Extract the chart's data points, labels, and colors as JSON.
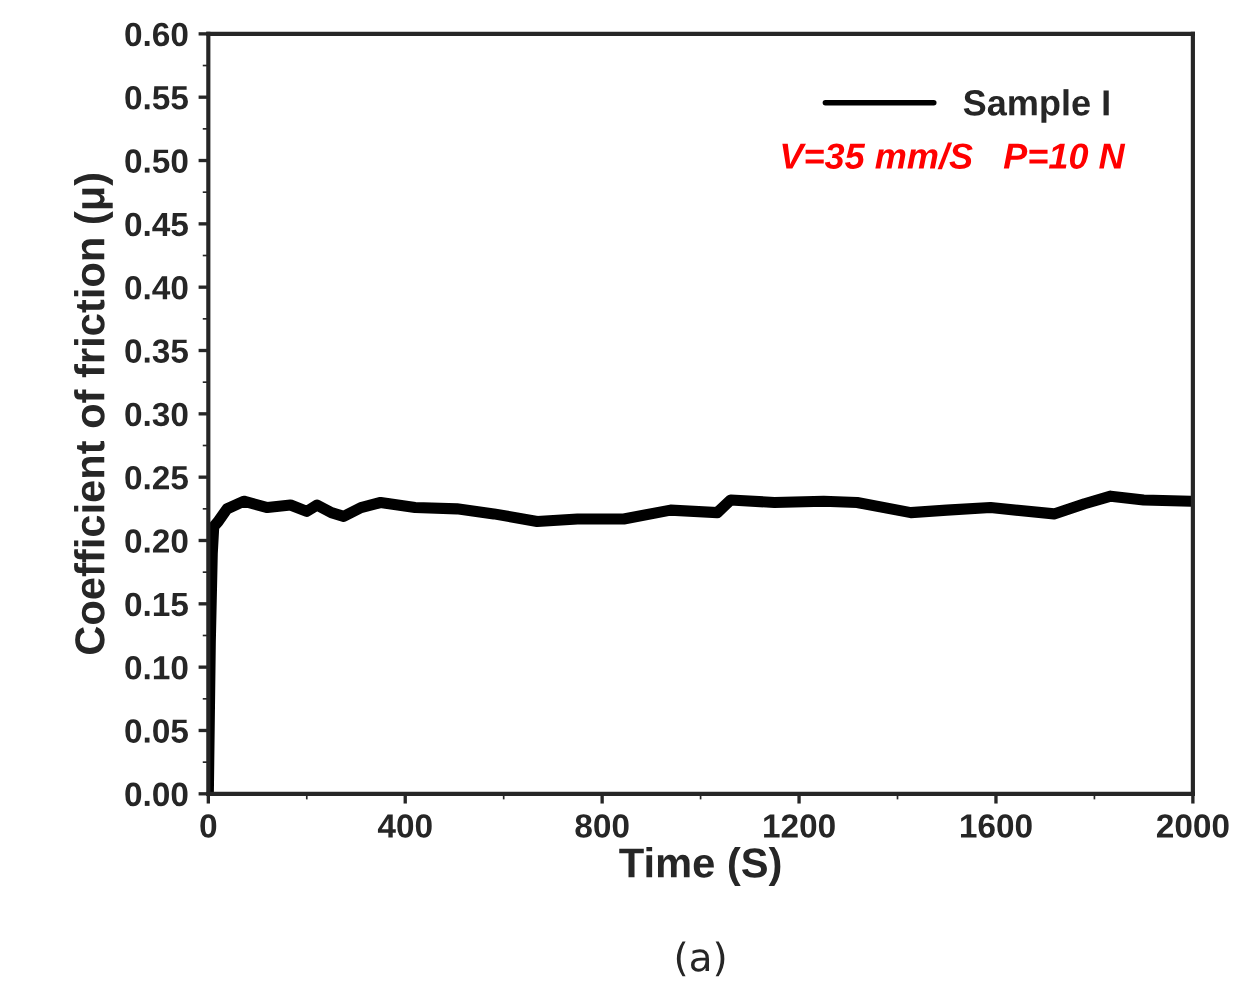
{
  "chart_data": {
    "type": "line",
    "xlabel": "Time (S)",
    "ylabel": "Coefficient of friction (μ)",
    "x": [
      0,
      4,
      8,
      11,
      20,
      38,
      72,
      120,
      167,
      200,
      221,
      250,
      275,
      310,
      350,
      420,
      505,
      580,
      668,
      750,
      844,
      939,
      1034,
      1061,
      1150,
      1250,
      1318,
      1427,
      1500,
      1589,
      1718,
      1780,
      1833,
      1900,
      1996
    ],
    "series": [
      {
        "name": "Sample I",
        "color": "#000000",
        "values": [
          0,
          0.12,
          0.19,
          0.211,
          0.215,
          0.225,
          0.231,
          0.226,
          0.228,
          0.223,
          0.228,
          0.222,
          0.219,
          0.226,
          0.23,
          0.226,
          0.225,
          0.221,
          0.215,
          0.217,
          0.217,
          0.224,
          0.222,
          0.232,
          0.23,
          0.231,
          0.23,
          0.222,
          0.224,
          0.226,
          0.221,
          0.229,
          0.235,
          0.232,
          0.231
        ]
      }
    ],
    "xlim": [
      0,
      2000
    ],
    "xticks": [
      0,
      400,
      800,
      1200,
      1600,
      2000
    ],
    "ylim": [
      0,
      0.6
    ],
    "yticks": [
      {
        "value": 0,
        "label": "0.00"
      },
      {
        "value": 0.05,
        "label": "0.05"
      },
      {
        "value": 0.1,
        "label": "0.10"
      },
      {
        "value": 0.15,
        "label": "0.15"
      },
      {
        "value": 0.2,
        "label": "0.20"
      },
      {
        "value": 0.25,
        "label": "0.25"
      },
      {
        "value": 0.3,
        "label": "0.30"
      },
      {
        "value": 0.35,
        "label": "0.35"
      },
      {
        "value": 0.4,
        "label": "0.40"
      },
      {
        "value": 0.45,
        "label": "0.45"
      },
      {
        "value": 0.5,
        "label": "0.50"
      },
      {
        "value": 0.55,
        "label": "0.55"
      },
      {
        "value": 0.6,
        "label": "0.60"
      }
    ],
    "legend": "top right",
    "grid": false,
    "marker": "none",
    "line_style": "solid",
    "annotations": [
      "V=35 mm/S   P=10 N",
      "(a)"
    ]
  }
}
